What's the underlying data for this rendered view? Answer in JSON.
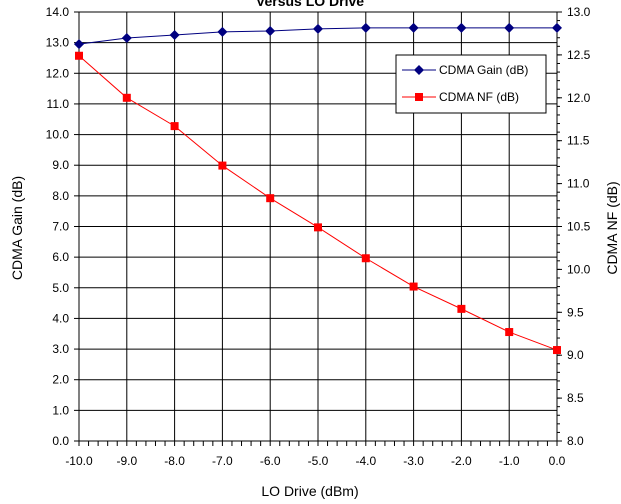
{
  "chart_data": {
    "type": "line",
    "title": "Versus LO Drive",
    "xlabel": "LO Drive (dBm)",
    "ylabel": "CDMA Gain (dB)",
    "y2label": "CDMA NF (dB)",
    "xlim": [
      -10,
      0
    ],
    "ylim": [
      0,
      14
    ],
    "y2lim": [
      8,
      13
    ],
    "x_ticks": [
      "-10.0",
      "-9.0",
      "-8.0",
      "-7.0",
      "-6.0",
      "-5.0",
      "-4.0",
      "-3.0",
      "-2.0",
      "-1.0",
      "0.0"
    ],
    "y_ticks": [
      "0.0",
      "1.0",
      "2.0",
      "3.0",
      "4.0",
      "5.0",
      "6.0",
      "7.0",
      "8.0",
      "9.0",
      "10.0",
      "11.0",
      "12.0",
      "13.0",
      "14.0"
    ],
    "y2_ticks": [
      "8.0",
      "8.5",
      "9.0",
      "9.5",
      "10.0",
      "10.5",
      "11.0",
      "11.5",
      "12.0",
      "12.5",
      "13.0"
    ],
    "grid": true,
    "legend_position": "top-right",
    "series": [
      {
        "name": "CDMA Gain (dB)",
        "axis": "left",
        "color": "#000080",
        "marker": "diamond",
        "x": [
          -10,
          -9,
          -8,
          -7,
          -6,
          -5,
          -4,
          -3,
          -2,
          -1,
          0
        ],
        "values": [
          12.95,
          13.15,
          13.25,
          13.35,
          13.38,
          13.45,
          13.48,
          13.48,
          13.48,
          13.48,
          13.48
        ]
      },
      {
        "name": "CDMA NF (dB)",
        "axis": "right",
        "color": "#ff0000",
        "marker": "square",
        "x": [
          -10,
          -9,
          -8,
          -7,
          -6,
          -5,
          -4,
          -3,
          -2,
          -1,
          0
        ],
        "values": [
          12.49,
          12.0,
          11.67,
          11.21,
          10.83,
          10.49,
          10.13,
          9.8,
          9.54,
          9.27,
          9.06
        ]
      }
    ]
  }
}
